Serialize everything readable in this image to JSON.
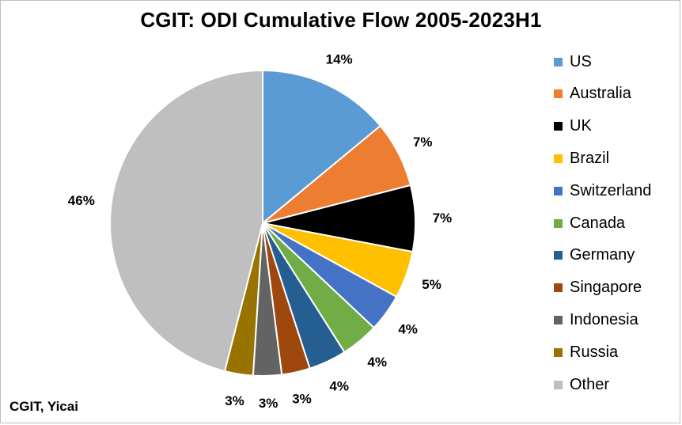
{
  "chart_data": {
    "type": "pie",
    "title": "CGIT: ODI Cumulative Flow 2005-2023H1",
    "legend_position": "right",
    "source": "CGIT, Yicai",
    "slices": [
      {
        "label": "US",
        "value": 14,
        "value_label": "14%",
        "color": "#5b9bd5"
      },
      {
        "label": "Australia",
        "value": 7,
        "value_label": "7%",
        "color": "#ed7d31"
      },
      {
        "label": "UK",
        "value": 7,
        "value_label": "7%",
        "color": "#000000"
      },
      {
        "label": "Brazil",
        "value": 5,
        "value_label": "5%",
        "color": "#ffc000"
      },
      {
        "label": "Switzerland",
        "value": 4,
        "value_label": "4%",
        "color": "#4472c4"
      },
      {
        "label": "Canada",
        "value": 4,
        "value_label": "4%",
        "color": "#70ad47"
      },
      {
        "label": "Germany",
        "value": 4,
        "value_label": "4%",
        "color": "#255e91"
      },
      {
        "label": "Singapore",
        "value": 3,
        "value_label": "3%",
        "color": "#9e480e"
      },
      {
        "label": "Indonesia",
        "value": 3,
        "value_label": "3%",
        "color": "#636363"
      },
      {
        "label": "Russia",
        "value": 3,
        "value_label": "3%",
        "color": "#997300"
      },
      {
        "label": "Other",
        "value": 46,
        "value_label": "46%",
        "color": "#bfbfbf"
      }
    ]
  }
}
